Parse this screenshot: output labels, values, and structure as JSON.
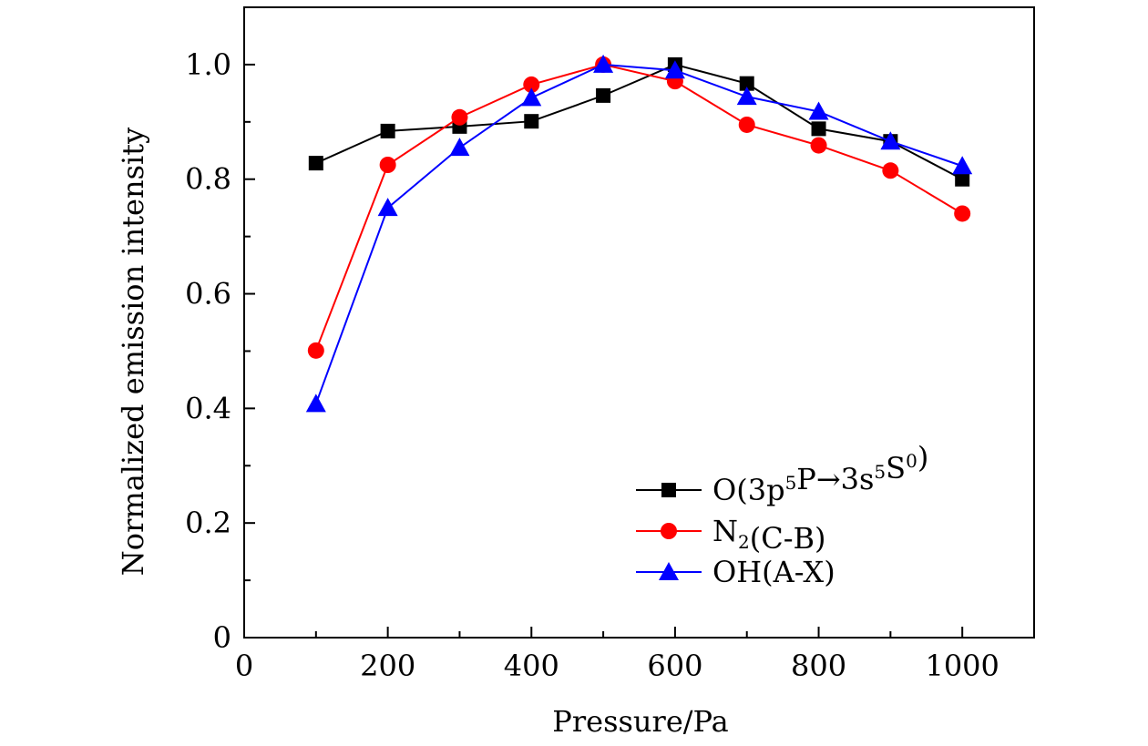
{
  "chart_data": {
    "type": "line",
    "title": "",
    "xlabel": "Pressure/Pa",
    "ylabel": "Normalized emission intensity",
    "xlim": [
      0,
      1100
    ],
    "ylim": [
      0,
      1.1
    ],
    "xticks": [
      0,
      200,
      400,
      600,
      800,
      1000
    ],
    "xtick_labels": [
      "0",
      "200",
      "400",
      "600",
      "800",
      "1000"
    ],
    "yticks": [
      0,
      0.2,
      0.4,
      0.6,
      0.8,
      1.0
    ],
    "ytick_labels": [
      "0",
      "0.2",
      "0.4",
      "0.6",
      "0.8",
      "1.0"
    ],
    "grid": false,
    "legend_position": "bottom-right",
    "x": [
      100,
      200,
      300,
      400,
      500,
      600,
      700,
      800,
      900,
      1000
    ],
    "series": [
      {
        "legend": [
          {
            "t": "O(3p",
            "s": "n"
          },
          {
            "t": "5",
            "s": "sup"
          },
          {
            "t": "P→3s",
            "s": "n"
          },
          {
            "t": "5",
            "s": "sup"
          },
          {
            "t": "S",
            "s": "n"
          },
          {
            "t": "0",
            "s": "sup"
          },
          {
            "t": ")",
            "s": "n"
          }
        ],
        "color": "#000000",
        "marker": "square",
        "values": [
          0.828,
          0.884,
          0.892,
          0.901,
          0.946,
          1.0,
          0.967,
          0.888,
          0.866,
          0.8
        ]
      },
      {
        "legend": [
          {
            "t": "N",
            "s": "n"
          },
          {
            "t": "2",
            "s": "sub"
          },
          {
            "t": "(C-B)",
            "s": "n"
          }
        ],
        "color": "#ff0000",
        "marker": "circle",
        "values": [
          0.501,
          0.825,
          0.908,
          0.965,
          1.0,
          0.971,
          0.895,
          0.859,
          0.815,
          0.74
        ]
      },
      {
        "legend": [
          {
            "t": "OH(A-X)",
            "s": "n"
          }
        ],
        "color": "#0000ff",
        "marker": "triangle",
        "values": [
          0.408,
          0.75,
          0.855,
          0.942,
          1.0,
          0.99,
          0.944,
          0.918,
          0.866,
          0.823
        ]
      }
    ]
  }
}
